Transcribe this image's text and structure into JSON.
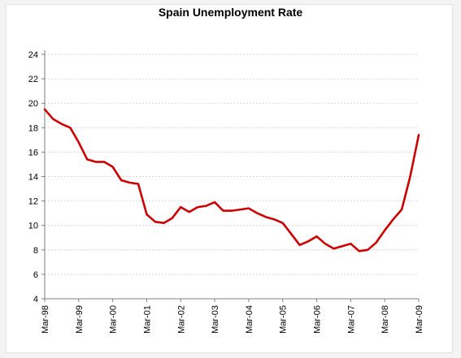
{
  "chart_data": {
    "type": "line",
    "title": "Spain Unemployment Rate",
    "xlabel": "",
    "ylabel": "",
    "ylim": [
      4,
      24
    ],
    "yticks": [
      4,
      6,
      8,
      10,
      12,
      14,
      16,
      18,
      20,
      22,
      24
    ],
    "xticks": [
      "Mar-98",
      "Mar-99",
      "Mar-00",
      "Mar-01",
      "Mar-02",
      "Mar-03",
      "Mar-04",
      "Mar-05",
      "Mar-06",
      "Mar-07",
      "Mar-08",
      "Mar-09"
    ],
    "grid": "horizontal dashed",
    "legend": "none",
    "line_color": "#cc0000",
    "series": [
      {
        "x": [
          "Mar-98",
          "Jun-98",
          "Sep-98",
          "Dec-98",
          "Mar-99",
          "Jun-99",
          "Sep-99",
          "Dec-99",
          "Mar-00",
          "Jun-00",
          "Sep-00",
          "Dec-00",
          "Mar-01",
          "Jun-01",
          "Sep-01",
          "Dec-01",
          "Mar-02",
          "Jun-02",
          "Sep-02",
          "Dec-02",
          "Mar-03",
          "Jun-03",
          "Sep-03",
          "Dec-03",
          "Mar-04",
          "Jun-04",
          "Sep-04",
          "Dec-04",
          "Mar-05",
          "Jun-05",
          "Sep-05",
          "Dec-05",
          "Mar-06",
          "Jun-06",
          "Sep-06",
          "Dec-06",
          "Mar-07",
          "Jun-07",
          "Sep-07",
          "Dec-07",
          "Mar-08",
          "Jun-08",
          "Sep-08",
          "Dec-08",
          "Mar-09"
        ],
        "values": [
          19.5,
          18.7,
          18.3,
          18.0,
          16.8,
          15.4,
          15.2,
          15.2,
          14.8,
          13.7,
          13.5,
          13.4,
          10.9,
          10.3,
          10.2,
          10.6,
          11.5,
          11.1,
          11.5,
          11.6,
          11.9,
          11.2,
          11.2,
          11.3,
          11.4,
          11.0,
          10.7,
          10.5,
          10.2,
          9.3,
          8.4,
          8.7,
          9.1,
          8.5,
          8.1,
          8.3,
          8.5,
          7.9,
          8.0,
          8.6,
          9.6,
          10.5,
          11.3,
          14.0,
          17.4
        ]
      }
    ]
  }
}
